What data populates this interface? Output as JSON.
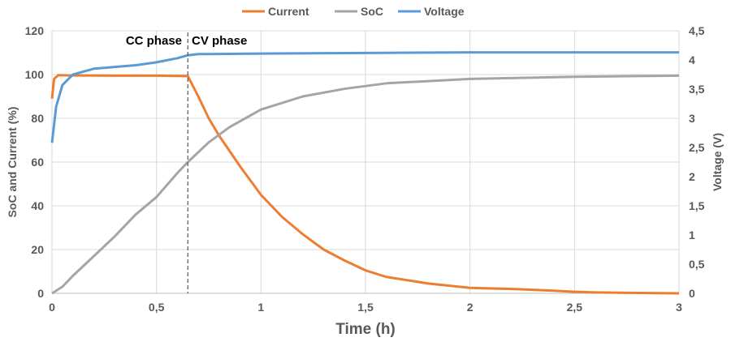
{
  "chart_data": {
    "type": "line",
    "xlabel": "Time (h)",
    "ylabel": "SoC and Current (%)",
    "y2label": "Voltage (V)",
    "xlim": [
      0,
      3
    ],
    "ylim": [
      0,
      120
    ],
    "y2lim": [
      0,
      4.5
    ],
    "xticks": [
      "0",
      "0,5",
      "1",
      "1,5",
      "2",
      "2,5",
      "3"
    ],
    "yticks": [
      "0",
      "20",
      "40",
      "60",
      "80",
      "100",
      "120"
    ],
    "y2ticks": [
      "0",
      "0,5",
      "1",
      "1,5",
      "2",
      "2,5",
      "3",
      "3,5",
      "4",
      "4,5"
    ],
    "grid": true,
    "legend_position": "top",
    "annotations": [
      {
        "text": "CC phase"
      },
      {
        "text": "CV phase"
      }
    ],
    "phase_boundary_x": 0.65,
    "series": [
      {
        "name": "Current",
        "axis": "left",
        "color": "#ED7D31",
        "x": [
          0,
          0.01,
          0.03,
          0.1,
          0.3,
          0.5,
          0.65,
          0.7,
          0.75,
          0.8,
          0.9,
          1,
          1.1,
          1.2,
          1.3,
          1.4,
          1.5,
          1.6,
          1.8,
          2,
          2.2,
          2.4,
          2.5,
          2.6,
          3
        ],
        "y": [
          89,
          98,
          99.7,
          99.6,
          99.5,
          99.5,
          99.3,
          90,
          80,
          72,
          58,
          45,
          35,
          27,
          20,
          15,
          10.5,
          7.5,
          4.5,
          2.5,
          2,
          1.2,
          0.7,
          0.4,
          0
        ]
      },
      {
        "name": "SoC",
        "axis": "left",
        "color": "#A5A5A5",
        "x": [
          0,
          0.05,
          0.1,
          0.2,
          0.3,
          0.4,
          0.5,
          0.6,
          0.65,
          0.75,
          0.85,
          1,
          1.2,
          1.4,
          1.6,
          1.8,
          2,
          2.5,
          3
        ],
        "y": [
          0,
          3,
          8,
          17,
          26,
          36,
          44,
          55,
          60,
          69,
          76,
          84,
          90,
          93.5,
          96,
          97,
          98,
          99,
          99.5
        ]
      },
      {
        "name": "Voltage",
        "axis": "right",
        "color": "#5B9BD5",
        "x": [
          0,
          0.02,
          0.05,
          0.1,
          0.2,
          0.3,
          0.4,
          0.5,
          0.6,
          0.65,
          0.7,
          1,
          1.5,
          2,
          3
        ],
        "y": [
          2.58,
          3.2,
          3.57,
          3.75,
          3.85,
          3.88,
          3.91,
          3.96,
          4.03,
          4.08,
          4.1,
          4.11,
          4.12,
          4.13,
          4.13
        ]
      }
    ]
  }
}
